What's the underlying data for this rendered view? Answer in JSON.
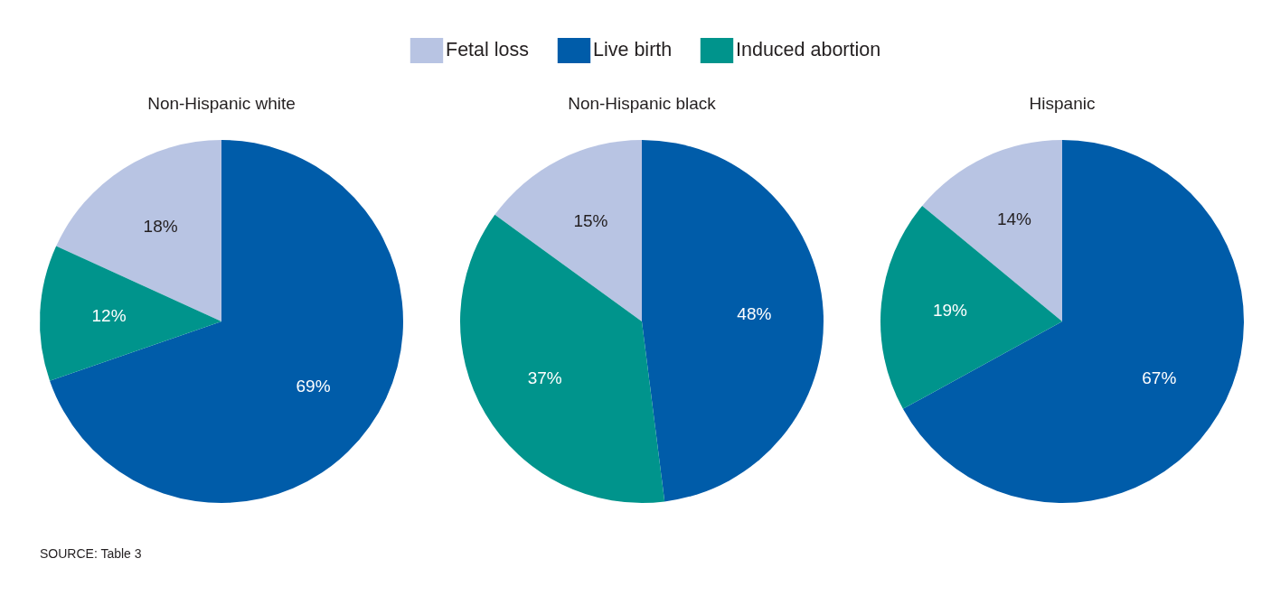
{
  "chart_data": {
    "type": "pie",
    "categories": [
      "Fetal loss",
      "Live birth",
      "Induced abortion"
    ],
    "colors": [
      "#b8c4e3",
      "#005ca9",
      "#00948c"
    ],
    "legend": "top",
    "annotations": [
      "SOURCE: Table 3"
    ],
    "series": [
      {
        "name": "Non-Hispanic white",
        "values": [
          18,
          69,
          12
        ],
        "value_labels": [
          "18%",
          "69%",
          "12%"
        ]
      },
      {
        "name": "Non-Hispanic black",
        "values": [
          15,
          48,
          37
        ],
        "value_labels": [
          "15%",
          "48%",
          "37%"
        ]
      },
      {
        "name": "Hispanic",
        "values": [
          14,
          67,
          19
        ],
        "value_labels": [
          "14%",
          "67%",
          "19%"
        ]
      }
    ]
  }
}
